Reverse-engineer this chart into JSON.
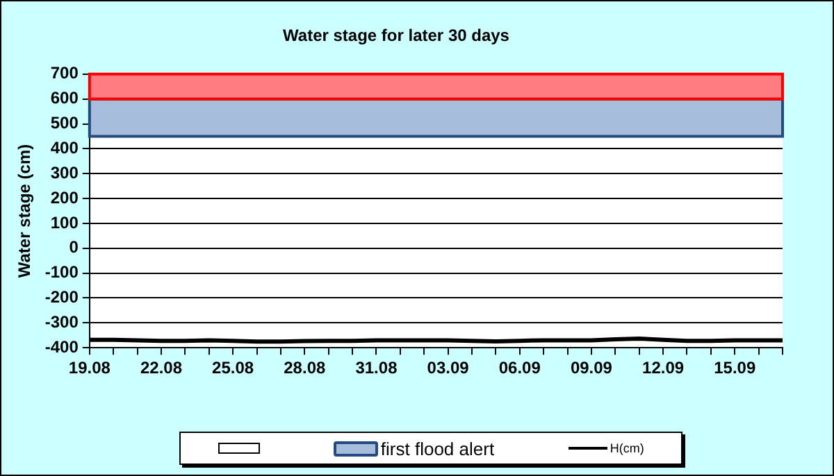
{
  "chart_data": {
    "type": "line",
    "title": "Water stage for later 30 days",
    "ylabel": "Water stage (cm)",
    "categories": [
      "19.08",
      null,
      null,
      "22.08",
      null,
      null,
      "25.08",
      null,
      null,
      "28.08",
      null,
      null,
      "31.08",
      null,
      null,
      "03.09",
      null,
      null,
      "06.09",
      null,
      null,
      "09.09",
      null,
      null,
      "12.09",
      null,
      null,
      "15.09",
      null,
      null
    ],
    "series": [
      {
        "name": "H(cm)",
        "color": "#000000",
        "values": [
          -368,
          -368,
          -370,
          -372,
          -372,
          -370,
          -372,
          -375,
          -375,
          -373,
          -372,
          -372,
          -370,
          -370,
          -370,
          -370,
          -372,
          -374,
          -372,
          -370,
          -370,
          -370,
          -366,
          -363,
          -368,
          -372,
          -372,
          -370,
          -370,
          -370
        ]
      }
    ],
    "ylim": [
      -400,
      700
    ],
    "yticks": [
      -400,
      -300,
      -200,
      -100,
      0,
      100,
      200,
      300,
      400,
      500,
      600,
      700
    ],
    "bands": [
      {
        "axis": "y",
        "from": 450,
        "to": 600,
        "label": "first flood alert",
        "color": "#a6bddb"
      },
      {
        "axis": "y",
        "from": 600,
        "to": 700,
        "color": "#ff7c80"
      }
    ],
    "grid": "y",
    "legend": "bottom",
    "marker": "none",
    "line_style": "solid"
  }
}
